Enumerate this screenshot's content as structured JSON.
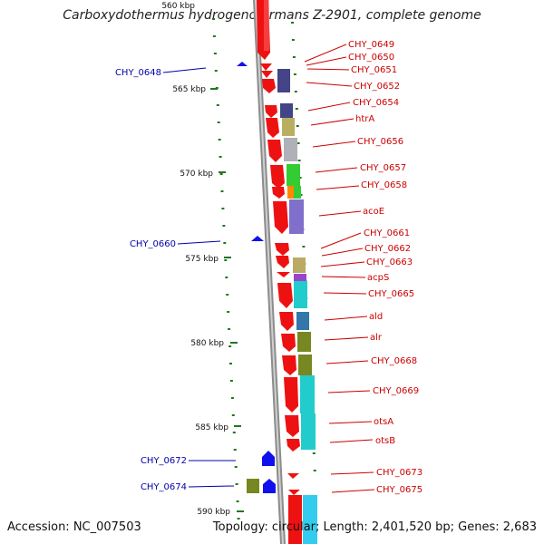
{
  "title": "Carboxydothermus hydrogenoformans Z-2901, complete genome",
  "accession": "Accession: NC_007503",
  "topology": "Topology: circular; Length: 2,401,520 bp; Genes: 2,683",
  "colors": {
    "backbone": "#888888",
    "cds": "#ee1111",
    "tick": "#227722",
    "label_red": "#cc0000",
    "label_blue": "#0000aa",
    "blue_feature": "#1010ee"
  },
  "ticks": [
    {
      "label": "560 kbp"
    },
    {
      "label": "565 kbp"
    },
    {
      "label": "570 kbp"
    },
    {
      "label": "575 kbp"
    },
    {
      "label": "580 kbp"
    },
    {
      "label": "585 kbp"
    },
    {
      "label": "590 kbp"
    }
  ],
  "right_labels": [
    "CHY_0649",
    "CHY_0650",
    "CHY_0651",
    "CHY_0652",
    "CHY_0654",
    "htrA",
    "CHY_0656",
    "CHY_0657",
    "CHY_0658",
    "acoE",
    "CHY_0661",
    "CHY_0662",
    "CHY_0663",
    "acpS",
    "CHY_0665",
    "ald",
    "alr",
    "CHY_0668",
    "CHY_0669",
    "otsA",
    "otsB",
    "CHY_0673",
    "CHY_0675"
  ],
  "left_labels": [
    "CHY_0648",
    "CHY_0660",
    "CHY_0672",
    "CHY_0674"
  ]
}
